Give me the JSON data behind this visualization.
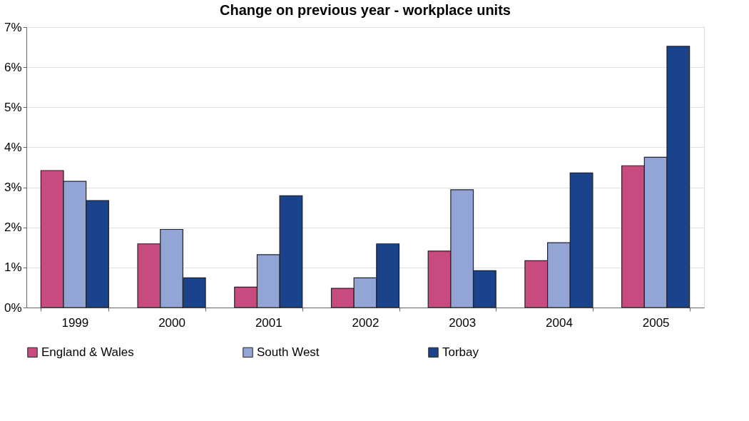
{
  "chart_data": {
    "type": "bar",
    "title": "Change on previous year - workplace units",
    "categories": [
      "1999",
      "2000",
      "2001",
      "2002",
      "2003",
      "2004",
      "2005"
    ],
    "series": [
      {
        "name": "England & Wales",
        "color": "#c84b80",
        "values": [
          3.42,
          1.59,
          0.51,
          0.48,
          1.41,
          1.17,
          3.54
        ]
      },
      {
        "name": "South West",
        "color": "#93a5d4",
        "values": [
          3.15,
          1.95,
          1.32,
          0.74,
          2.94,
          1.62,
          3.75
        ]
      },
      {
        "name": "Torbay",
        "color": "#1a438c",
        "values": [
          2.67,
          0.74,
          2.79,
          1.59,
          0.92,
          3.36,
          6.52
        ]
      }
    ],
    "ylim": [
      0,
      7
    ],
    "yticks": [
      {
        "value": 0,
        "label": "0%"
      },
      {
        "value": 1,
        "label": "1%"
      },
      {
        "value": 2,
        "label": "2%"
      },
      {
        "value": 3,
        "label": "3%"
      },
      {
        "value": 4,
        "label": "4%"
      },
      {
        "value": 5,
        "label": "5%"
      },
      {
        "value": 6,
        "label": "6%"
      },
      {
        "value": 7,
        "label": "7%"
      }
    ],
    "grid": "y",
    "legend": "bottom"
  }
}
